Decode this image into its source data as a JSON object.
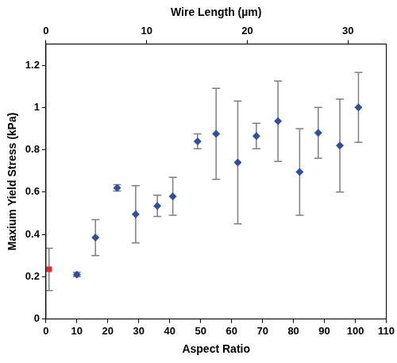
{
  "chart_data": {
    "type": "scatter",
    "xlabel": "Aspect Ratio",
    "x2label": "Wire Length (µm)",
    "ylabel": "Maxium Yield Stress (kPa)",
    "xlim": [
      0,
      110
    ],
    "xticks": [
      0,
      10,
      20,
      30,
      40,
      50,
      60,
      70,
      80,
      90,
      100,
      110
    ],
    "x2lim": [
      0,
      33.8
    ],
    "x2ticks": [
      0,
      10,
      20,
      30
    ],
    "ylim": [
      0,
      1.3
    ],
    "yticks": [
      0,
      0.2,
      0.4,
      0.6,
      0.8,
      1,
      1.2
    ],
    "grid": false,
    "series": [
      {
        "color": "#e8262a",
        "marker": "square",
        "x": [
          1
        ],
        "values": [
          0.235
        ],
        "errors": [
          0.1
        ]
      },
      {
        "color": "#2f4f9f",
        "marker": "diamond",
        "x": [
          10,
          16,
          23,
          29,
          36,
          41,
          49,
          55,
          62,
          68,
          75,
          82,
          88,
          95,
          101
        ],
        "values": [
          0.21,
          0.385,
          0.62,
          0.495,
          0.535,
          0.58,
          0.84,
          0.875,
          0.74,
          0.865,
          0.935,
          0.695,
          0.88,
          0.82,
          1.0
        ],
        "errors": [
          0.01,
          0.085,
          0.015,
          0.135,
          0.05,
          0.09,
          0.035,
          0.215,
          0.29,
          0.06,
          0.19,
          0.205,
          0.12,
          0.22,
          0.165
        ]
      }
    ]
  }
}
